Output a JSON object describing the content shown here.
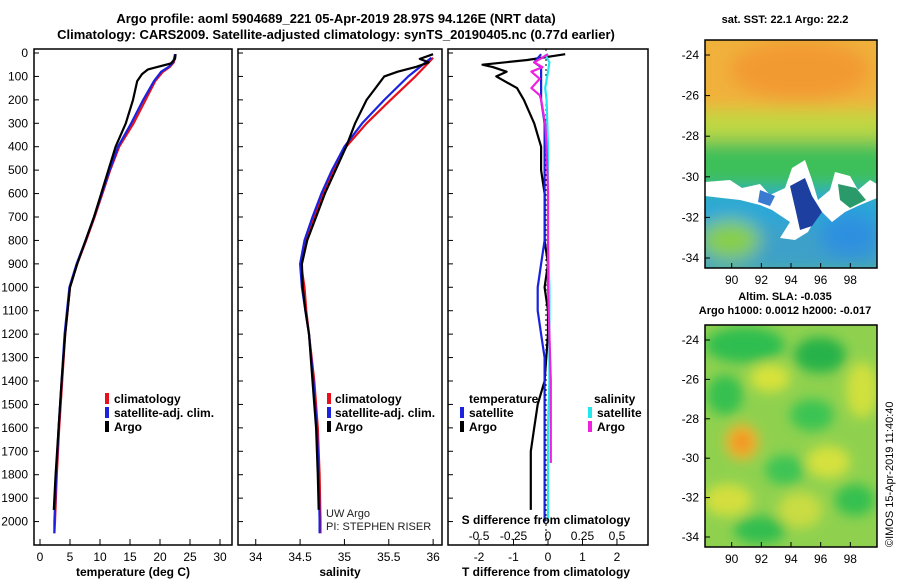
{
  "header": {
    "line1": "Argo profile: aoml 5904689_221 05-Apr-2019 28.97S 94.126E (NRT data)",
    "line2": "Climatology: CARS2009. Satellite-adjusted climatology: synTS_20190405.nc (0.77d earlier)"
  },
  "maps": {
    "sst_title": "sat. SST: 22.1 Argo: 22.2",
    "sla_title": "Altim. SLA: -0.035",
    "sla_title2": "Argo h1000: 0.0012 h2000: -0.017",
    "lon_ticks": [
      "90",
      "92",
      "94",
      "96",
      "98"
    ],
    "lat_ticks": [
      "-24",
      "-26",
      "-28",
      "-30",
      "-32",
      "-34"
    ]
  },
  "footer": {
    "stamp": "©IMOS 15-Apr-2019 11:40:40"
  },
  "colors": {
    "climatology": "#e8101a",
    "satellite": "#1a22e0",
    "argo": "#000000",
    "sat_salinity": "#22e8ee",
    "argo_salinity": "#ee22dd"
  },
  "chart_data": [
    {
      "type": "line",
      "title": "",
      "xlabel": "temperature (deg C)",
      "ylabel": "",
      "xlim": [
        -1,
        32
      ],
      "ylim": [
        2100,
        0
      ],
      "x_ticks": [
        "0",
        "5",
        "10",
        "15",
        "20",
        "25",
        "30"
      ],
      "y_ticks": [
        "0",
        "100",
        "200",
        "300",
        "400",
        "500",
        "600",
        "700",
        "800",
        "900",
        "1000",
        "1100",
        "1200",
        "1300",
        "1400",
        "1500",
        "1600",
        "1700",
        "1800",
        "1900",
        "2000"
      ],
      "legend": [
        "climatology",
        "satellite-adj. clim.",
        "Argo"
      ],
      "series": [
        {
          "name": "climatology",
          "color": "#e8101a",
          "depth": [
            5,
            40,
            60,
            80,
            120,
            200,
            300,
            400,
            500,
            600,
            700,
            800,
            900,
            1000,
            1200,
            1400,
            1600,
            1800,
            2000,
            2050
          ],
          "values": [
            22.6,
            22.3,
            21.6,
            20.5,
            19.2,
            17.6,
            15.6,
            13.2,
            11.7,
            10.4,
            9.1,
            7.7,
            6.2,
            5.0,
            4.2,
            3.7,
            3.2,
            2.8,
            2.5,
            2.4
          ]
        },
        {
          "name": "satellite-adj. clim.",
          "color": "#1a22e0",
          "depth": [
            5,
            40,
            60,
            80,
            120,
            200,
            300,
            400,
            500,
            600,
            700,
            800,
            900,
            1000,
            1200,
            1400,
            1600,
            1800,
            2000,
            2050
          ],
          "values": [
            22.5,
            22.2,
            21.4,
            20.2,
            19.0,
            17.2,
            15.2,
            13.0,
            11.6,
            10.3,
            9.0,
            7.6,
            6.1,
            4.9,
            4.1,
            3.6,
            3.1,
            2.7,
            2.4,
            2.4
          ]
        },
        {
          "name": "Argo",
          "color": "#000000",
          "depth": [
            5,
            25,
            45,
            60,
            70,
            90,
            120,
            200,
            300,
            400,
            500,
            600,
            700,
            800,
            900,
            1000,
            1200,
            1400,
            1600,
            1800,
            1950
          ],
          "values": [
            22.6,
            22.5,
            21.8,
            19.5,
            18.0,
            17.0,
            16.2,
            15.5,
            14.3,
            12.6,
            11.4,
            10.2,
            9.0,
            7.6,
            6.2,
            5.0,
            4.2,
            3.6,
            3.1,
            2.6,
            2.3
          ]
        }
      ]
    },
    {
      "type": "line",
      "title": "",
      "xlabel": "salinity",
      "ylabel": "",
      "xlim": [
        33.8,
        36.1
      ],
      "ylim": [
        2100,
        0
      ],
      "x_ticks": [
        "34",
        "34.5",
        "35",
        "35.5",
        "36"
      ],
      "legend": [
        "climatology",
        "satellite-adj. clim.",
        "Argo"
      ],
      "annotations": [
        "UW Argo",
        "PI: STEPHEN RISER"
      ],
      "series": [
        {
          "name": "climatology",
          "color": "#e8101a",
          "depth": [
            20,
            60,
            100,
            200,
            300,
            400,
            500,
            600,
            700,
            800,
            900,
            1000,
            1100,
            1200,
            1400,
            1600,
            1800,
            2000,
            2050
          ],
          "values": [
            36.0,
            35.9,
            35.8,
            35.52,
            35.25,
            35.02,
            34.88,
            34.76,
            34.66,
            34.56,
            34.51,
            34.55,
            34.57,
            34.6,
            34.66,
            34.7,
            34.72,
            34.73,
            34.73
          ]
        },
        {
          "name": "satellite-adj. clim.",
          "color": "#1a22e0",
          "depth": [
            20,
            60,
            100,
            200,
            300,
            400,
            500,
            600,
            700,
            800,
            900,
            1000,
            1100,
            1200,
            1400,
            1600,
            1800,
            2000,
            2050
          ],
          "values": [
            35.98,
            35.85,
            35.72,
            35.45,
            35.2,
            35.0,
            34.86,
            34.74,
            34.64,
            34.55,
            34.5,
            34.52,
            34.56,
            34.6,
            34.65,
            34.69,
            34.71,
            34.72,
            34.72
          ]
        },
        {
          "name": "Argo",
          "color": "#000000",
          "depth": [
            5,
            25,
            40,
            60,
            80,
            100,
            150,
            200,
            300,
            400,
            500,
            600,
            700,
            800,
            900,
            1000,
            1100,
            1200,
            1400,
            1600,
            1800,
            1950
          ],
          "values": [
            36.0,
            35.85,
            35.95,
            35.8,
            35.6,
            35.45,
            35.35,
            35.25,
            35.12,
            35.02,
            34.9,
            34.78,
            34.68,
            34.58,
            34.52,
            34.53,
            34.56,
            34.6,
            34.64,
            34.68,
            34.7,
            34.71
          ]
        }
      ]
    },
    {
      "type": "line",
      "title": "",
      "xlabel": "T difference from climatology",
      "ylabel": "",
      "xlim": [
        -2.9,
        2.9
      ],
      "ylim": [
        2100,
        0
      ],
      "x_ticks": [
        "-2",
        "-1",
        "0",
        "1",
        "2"
      ],
      "top_axis_label": "S difference from climatology",
      "top_ticks": [
        "-0.5",
        "-0.25",
        "0",
        "0.25",
        "0.5"
      ],
      "legend": [
        "temperature satellite",
        "temperature Argo",
        "salinity satellite",
        "salinity Argo"
      ],
      "legend_headers": [
        "temperature",
        "salinity"
      ],
      "legend_items": [
        "satellite",
        "Argo",
        "satellite",
        "Argo"
      ],
      "series": [
        {
          "name": "T Argo",
          "color": "#000000",
          "depth": [
            5,
            30,
            50,
            60,
            80,
            100,
            150,
            200,
            300,
            400,
            500,
            600,
            700,
            800,
            900,
            1000,
            1100,
            1200,
            1400,
            1500,
            1600,
            1700,
            1800,
            1950
          ],
          "values": [
            0.5,
            -0.6,
            -1.9,
            -1.6,
            -1.2,
            -1.5,
            -0.9,
            -0.7,
            -0.4,
            -0.2,
            -0.2,
            -0.1,
            -0.1,
            -0.1,
            0.0,
            -0.1,
            0.0,
            0.0,
            -0.1,
            -0.3,
            -0.4,
            -0.5,
            -0.5,
            -0.5
          ]
        },
        {
          "name": "T satellite",
          "color": "#1a22e0",
          "depth": [
            5,
            40,
            60,
            100,
            200,
            300,
            400,
            500,
            600,
            700,
            800,
            900,
            1000,
            1100,
            1200,
            1300,
            1400,
            1500,
            1600,
            1800,
            2000
          ],
          "values": [
            -0.2,
            -0.4,
            -0.2,
            -0.2,
            -0.2,
            -0.1,
            -0.1,
            -0.1,
            -0.1,
            -0.1,
            -0.1,
            -0.2,
            -0.3,
            -0.3,
            -0.2,
            -0.1,
            -0.1,
            -0.1,
            -0.1,
            -0.1,
            -0.1
          ]
        },
        {
          "name": "S satellite",
          "color": "#22e8ee",
          "depth": [
            5,
            40,
            80,
            150,
            200,
            400,
            600,
            800,
            1000,
            1200,
            1400,
            1600,
            1800,
            2000
          ],
          "values": [
            -0.02,
            0.01,
            0.0,
            -0.02,
            -0.01,
            0.0,
            0.0,
            0.0,
            0.01,
            0.01,
            0.01,
            0.0,
            0.0,
            0.0
          ]
        },
        {
          "name": "S Argo",
          "color": "#ee22dd",
          "depth": [
            5,
            40,
            60,
            80,
            110,
            150,
            180,
            200,
            300,
            400,
            600,
            800,
            1000,
            1200,
            1400,
            1600,
            1750
          ],
          "values": [
            0.0,
            -0.1,
            -0.04,
            -0.12,
            -0.06,
            -0.12,
            -0.06,
            -0.05,
            -0.02,
            -0.01,
            0.0,
            0.0,
            0.0,
            0.01,
            0.02,
            0.02,
            0.02
          ]
        }
      ]
    }
  ]
}
